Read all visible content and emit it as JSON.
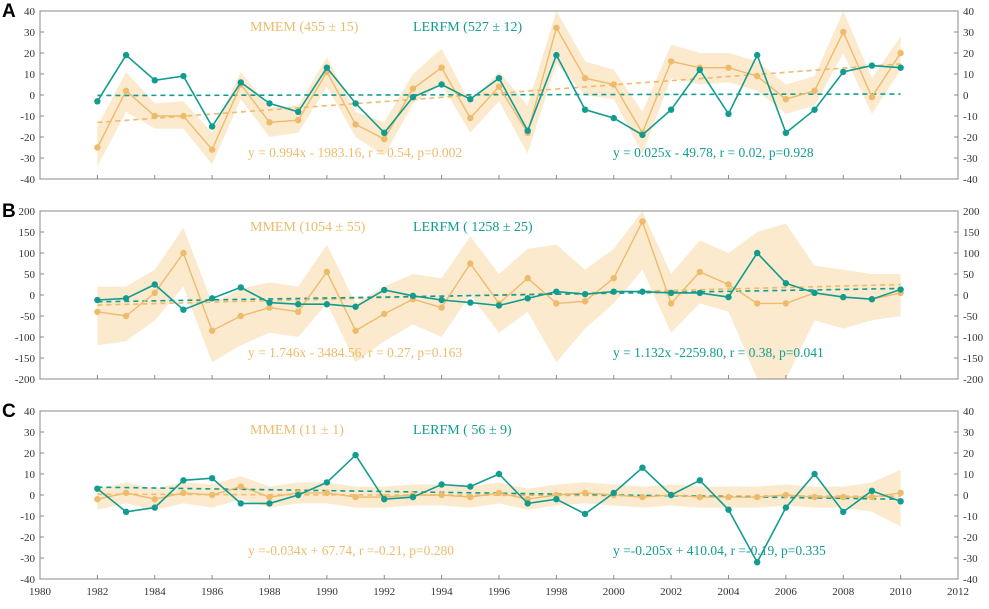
{
  "colors": {
    "mmem": "#EDBB6B",
    "mmem_band": "#FBE3BE",
    "lerfm": "#129C90",
    "axis": "#8a8a8a"
  },
  "chart_data": [
    {
      "type": "line",
      "panel_label": "A",
      "x": [
        1982,
        1983,
        1984,
        1985,
        1986,
        1987,
        1988,
        1989,
        1990,
        1991,
        1992,
        1993,
        1994,
        1995,
        1996,
        1997,
        1998,
        1999,
        2000,
        2001,
        2002,
        2003,
        2004,
        2005,
        2006,
        2007,
        2008,
        2009,
        2010
      ],
      "xlim": [
        1980,
        2012
      ],
      "xticks": [
        1980,
        1982,
        1984,
        1986,
        1988,
        1990,
        1992,
        1994,
        1996,
        1998,
        2000,
        2002,
        2004,
        2006,
        2008,
        2010,
        2012
      ],
      "ylim": [
        -40,
        40
      ],
      "yticks": [
        -40,
        -30,
        -20,
        -10,
        0,
        10,
        20,
        30,
        40
      ],
      "series": [
        {
          "name": "MMEM",
          "legend": "MMEM (455 ± 15)",
          "values": [
            -25,
            2,
            -10,
            -10,
            -26,
            5,
            -13,
            -12,
            11,
            -14,
            -21,
            3,
            13,
            -11,
            4,
            -18,
            32,
            8,
            5,
            -18,
            16,
            13,
            13,
            9,
            -2,
            2,
            30,
            -1,
            20
          ],
          "band_low": [
            -34,
            -8,
            -16,
            -16,
            -33,
            -2,
            -20,
            -18,
            4,
            -20,
            -29,
            -4,
            5,
            -18,
            -3,
            -28,
            15,
            0,
            -2,
            -28,
            8,
            5,
            6,
            2,
            -9,
            -5,
            20,
            -9,
            12
          ],
          "band_high": [
            -15,
            11,
            -4,
            -3,
            -18,
            11,
            -6,
            -5,
            18,
            -8,
            -13,
            10,
            22,
            -4,
            11,
            -5,
            40,
            16,
            12,
            -8,
            24,
            20,
            20,
            16,
            5,
            9,
            40,
            8,
            28
          ],
          "trend": {
            "slope": 0.994,
            "intercept": -1983.16,
            "label": "y = 0.994x - 1983.16, r = 0.54, p=0.002"
          }
        },
        {
          "name": "LERFM",
          "legend": "LERFM  (527 ± 12)",
          "values": [
            -3,
            19,
            7,
            9,
            -15,
            6,
            -4,
            -8,
            13,
            -4,
            -18,
            -1,
            5,
            -2,
            8,
            -17,
            19,
            -7,
            -11,
            -19,
            -7,
            12,
            -9,
            19,
            -18,
            -7,
            11,
            14,
            13
          ],
          "trend": {
            "slope": 0.025,
            "intercept": -49.78,
            "label": "y = 0.025x - 49.78, r = 0.02, p=0.928"
          }
        }
      ]
    },
    {
      "type": "line",
      "panel_label": "B",
      "x": [
        1982,
        1983,
        1984,
        1985,
        1986,
        1987,
        1988,
        1989,
        1990,
        1991,
        1992,
        1993,
        1994,
        1995,
        1996,
        1997,
        1998,
        1999,
        2000,
        2001,
        2002,
        2003,
        2004,
        2005,
        2006,
        2007,
        2008,
        2009,
        2010
      ],
      "xlim": [
        1980,
        2012
      ],
      "xticks": [
        1980,
        1982,
        1984,
        1986,
        1988,
        1990,
        1992,
        1994,
        1996,
        1998,
        2000,
        2002,
        2004,
        2006,
        2008,
        2010,
        2012
      ],
      "ylim": [
        -200,
        200
      ],
      "yticks": [
        -200,
        -150,
        -100,
        -50,
        0,
        50,
        100,
        150,
        200
      ],
      "series": [
        {
          "name": "MMEM",
          "legend": "MMEM (1054 ± 55)",
          "values": [
            -40,
            -50,
            5,
            100,
            -85,
            -50,
            -30,
            -40,
            55,
            -85,
            -45,
            -10,
            -30,
            75,
            -20,
            40,
            -20,
            -15,
            40,
            175,
            -20,
            55,
            25,
            -20,
            -20,
            5,
            -5,
            -10,
            5
          ],
          "band_low": [
            -120,
            -110,
            -60,
            20,
            -160,
            -120,
            -90,
            -100,
            -20,
            -160,
            -110,
            -70,
            -100,
            0,
            -90,
            -40,
            -160,
            -80,
            -20,
            60,
            -90,
            -20,
            -40,
            -200,
            -200,
            -60,
            -80,
            -60,
            -50
          ],
          "band_high": [
            20,
            20,
            60,
            160,
            -20,
            15,
            30,
            20,
            120,
            -20,
            20,
            50,
            40,
            140,
            50,
            110,
            120,
            60,
            110,
            200,
            50,
            130,
            100,
            150,
            170,
            70,
            60,
            50,
            50
          ],
          "trend": {
            "slope": 1.746,
            "intercept": -3484.56,
            "label": "y = 1.746x - 3484.56, r = 0.27, p=0.163"
          }
        },
        {
          "name": "LERFM",
          "legend": "LERFM  ( 1258 ± 25)",
          "values": [
            -12,
            -8,
            25,
            -35,
            -8,
            18,
            -18,
            -22,
            -22,
            -28,
            12,
            -2,
            -12,
            -18,
            -25,
            -8,
            8,
            2,
            8,
            8,
            5,
            5,
            -5,
            100,
            28,
            5,
            -5,
            -10,
            13
          ],
          "trend": {
            "slope": 1.132,
            "intercept": -2259.8,
            "label": "y = 1.132x -2259.80, r = 0.38, p=0.041"
          }
        }
      ]
    },
    {
      "type": "line",
      "panel_label": "C",
      "x": [
        1982,
        1983,
        1984,
        1985,
        1986,
        1987,
        1988,
        1989,
        1990,
        1991,
        1992,
        1993,
        1994,
        1995,
        1996,
        1997,
        1998,
        1999,
        2000,
        2001,
        2002,
        2003,
        2004,
        2005,
        2006,
        2007,
        2008,
        2009,
        2010
      ],
      "xlim": [
        1980,
        2012
      ],
      "xticks": [
        1980,
        1982,
        1984,
        1986,
        1988,
        1990,
        1992,
        1994,
        1996,
        1998,
        2000,
        2002,
        2004,
        2006,
        2008,
        2010,
        2012
      ],
      "xtick_labels": [
        "1980",
        "1982",
        "1984",
        "1986",
        "1988",
        "1990",
        "1992",
        "1994",
        "1996",
        "1998",
        "2000",
        "2002",
        "2004",
        "2006",
        "2008",
        "2010",
        "2012"
      ],
      "ylim": [
        -40,
        40
      ],
      "yticks": [
        -40,
        -30,
        -20,
        -10,
        0,
        10,
        20,
        30,
        40
      ],
      "series": [
        {
          "name": "MMEM",
          "legend": "MMEM (11 ± 1)",
          "values": [
            -2,
            1,
            -2,
            1,
            0,
            4,
            -1,
            1,
            1,
            -1,
            -1,
            0,
            0,
            -1,
            1,
            -2,
            0,
            1,
            0,
            -1,
            0,
            -1,
            -1,
            -1,
            0,
            -1,
            -1,
            -1,
            1
          ],
          "band_low": [
            -7,
            -4,
            -7,
            -4,
            -6,
            -2,
            -6,
            -4,
            -4,
            -6,
            -6,
            -5,
            -5,
            -6,
            -4,
            -7,
            -5,
            -4,
            -5,
            -6,
            -5,
            -6,
            -6,
            -6,
            -5,
            -6,
            -6,
            -8,
            -15
          ],
          "band_high": [
            3,
            6,
            3,
            6,
            5,
            9,
            4,
            6,
            6,
            4,
            4,
            5,
            5,
            4,
            6,
            3,
            5,
            6,
            5,
            4,
            5,
            4,
            4,
            4,
            5,
            4,
            4,
            6,
            12
          ],
          "trend": {
            "slope": -0.034,
            "intercept": 67.74,
            "label": "y =-0.034x + 67.74, r =-0.21, p=0.280"
          }
        },
        {
          "name": "LERFM",
          "legend": "LERFM  ( 56 ± 9)",
          "values": [
            3,
            -8,
            -6,
            7,
            8,
            -4,
            -4,
            0,
            6,
            19,
            -2,
            -1,
            5,
            4,
            10,
            -4,
            -2,
            -9,
            1,
            13,
            0,
            7,
            -7,
            -32,
            -6,
            10,
            -8,
            2,
            -3
          ],
          "trend": {
            "slope": -0.205,
            "intercept": 410.04,
            "label": "y =-0.205x + 410.04, r =-0.19, p=0.335"
          }
        }
      ]
    }
  ]
}
